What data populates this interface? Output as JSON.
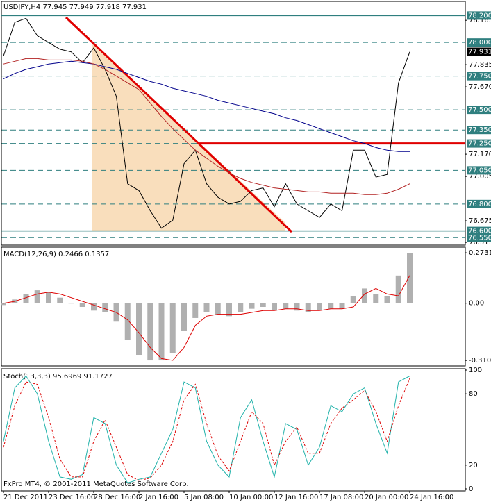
{
  "chart_data": [
    {
      "type": "line",
      "title": "USDJPY,H4  77.945 77.949 77.918 77.931",
      "ylim": [
        76.5,
        78.3
      ],
      "yticks": [
        {
          "value": 78.165,
          "label": "78.165"
        },
        {
          "value": 77.835,
          "label": "77.835"
        },
        {
          "value": 77.67,
          "label": "77.670"
        },
        {
          "value": 77.17,
          "label": "77.170"
        },
        {
          "value": 77.005,
          "label": "77.005"
        },
        {
          "value": 76.675,
          "label": "76.675"
        },
        {
          "value": 76.515,
          "label": "76.515"
        }
      ],
      "levels": [
        {
          "value": 78.2,
          "label": "78.200",
          "style": "solid"
        },
        {
          "value": 78.0,
          "label": "78.000",
          "style": "dashed"
        },
        {
          "value": 77.75,
          "label": "77.750",
          "style": "dashed"
        },
        {
          "value": 77.5,
          "label": "77.500",
          "style": "dashed"
        },
        {
          "value": 77.35,
          "label": "77.350",
          "style": "dashed"
        },
        {
          "value": 77.25,
          "label": "77.250",
          "style": "highlight"
        },
        {
          "value": 77.05,
          "label": "77.050",
          "style": "dashed"
        },
        {
          "value": 76.8,
          "label": "76.800",
          "style": "dashed"
        },
        {
          "value": 76.6,
          "label": "76.600",
          "style": "solid"
        },
        {
          "value": 76.55,
          "label": "76.550",
          "style": "dashed"
        }
      ],
      "last_price": {
        "value": 77.931,
        "label": "77.931"
      },
      "series": [
        {
          "color": "#000000",
          "values": [
            77.9,
            78.15,
            78.18,
            78.05,
            78.0,
            77.95,
            77.93,
            77.85,
            77.96,
            77.8,
            77.6,
            76.95,
            76.9,
            76.75,
            76.62,
            76.68,
            77.1,
            77.2,
            76.95,
            76.85,
            76.8,
            76.82,
            76.9,
            76.92,
            76.78,
            76.95,
            76.8,
            76.75,
            76.7,
            76.8,
            76.75,
            77.2,
            77.2,
            77.0,
            77.02,
            77.7,
            77.93,
            null,
            null,
            null
          ]
        },
        {
          "color": "#00008b",
          "values": [
            77.73,
            77.77,
            77.8,
            77.82,
            77.84,
            77.85,
            77.86,
            77.85,
            77.84,
            77.82,
            77.8,
            77.77,
            77.74,
            77.71,
            77.69,
            77.66,
            77.64,
            77.62,
            77.6,
            77.57,
            77.55,
            77.53,
            77.51,
            77.49,
            77.47,
            77.44,
            77.42,
            77.39,
            77.36,
            77.33,
            77.3,
            77.27,
            77.25,
            77.22,
            77.2,
            77.19,
            77.19,
            null,
            null,
            null
          ]
        },
        {
          "color": "#b22222",
          "values": [
            77.84,
            77.86,
            77.88,
            77.88,
            77.87,
            77.87,
            77.87,
            77.86,
            77.84,
            77.8,
            77.75,
            77.7,
            77.65,
            77.55,
            77.45,
            77.36,
            77.28,
            77.2,
            77.14,
            77.08,
            77.03,
            76.99,
            76.96,
            76.94,
            76.92,
            76.91,
            76.9,
            76.89,
            76.89,
            76.88,
            76.88,
            76.88,
            76.87,
            76.87,
            76.88,
            76.91,
            76.95,
            null,
            null,
            null
          ]
        }
      ]
    },
    {
      "type": "bar",
      "title": "MACD(12,26,9) 0.2466 0.1357",
      "ylim": [
        -0.34,
        0.3
      ],
      "yticks": [
        0.2731,
        {
          "value": 0,
          "label": "0.00"
        },
        -0.3104
      ],
      "series": [
        {
          "color": "#b0b0b0",
          "values": [
            -0.01,
            0.02,
            0.05,
            0.07,
            0.06,
            0.03,
            0.0,
            -0.02,
            -0.04,
            -0.05,
            -0.1,
            -0.2,
            -0.28,
            -0.31,
            -0.31,
            -0.27,
            -0.15,
            -0.08,
            -0.05,
            -0.06,
            -0.07,
            -0.05,
            -0.03,
            -0.02,
            -0.04,
            -0.03,
            -0.04,
            -0.05,
            -0.04,
            -0.03,
            -0.03,
            0.04,
            0.08,
            0.05,
            0.04,
            0.15,
            0.27,
            null,
            null,
            null
          ]
        },
        {
          "color": "#dd0000",
          "type": "line",
          "values": [
            0.0,
            0.01,
            0.03,
            0.05,
            0.06,
            0.05,
            0.03,
            0.01,
            -0.01,
            -0.03,
            -0.05,
            -0.09,
            -0.16,
            -0.24,
            -0.3,
            -0.31,
            -0.24,
            -0.12,
            -0.07,
            -0.06,
            -0.06,
            -0.06,
            -0.05,
            -0.04,
            -0.04,
            -0.03,
            -0.03,
            -0.04,
            -0.04,
            -0.03,
            -0.03,
            -0.02,
            0.05,
            0.08,
            0.05,
            0.04,
            0.15,
            null,
            null,
            null
          ]
        }
      ]
    },
    {
      "type": "line",
      "title": "Stoch(13,3,3) 95.6969 91.1727",
      "ylim": [
        0,
        100
      ],
      "yticks": [
        100,
        80,
        20,
        0
      ],
      "footer": "FxPro MT4, © 2001-2011 MetaQuotes Software Corp.",
      "categories": [
        "21 Dec 2011",
        null,
        null,
        null,
        "23 Dec 16:00",
        null,
        null,
        null,
        "28 Dec 16:00",
        null,
        null,
        null,
        "2 Jan 16:00",
        null,
        null,
        null,
        "5 Jan 08:00",
        null,
        null,
        null,
        "10 Jan 00:00",
        null,
        null,
        null,
        "12 Jan 16:00",
        null,
        null,
        null,
        "17 Jan 08:00",
        null,
        null,
        null,
        "20 Jan 00:00",
        null,
        null,
        null,
        "24 Jan 16:00",
        null,
        null,
        null
      ],
      "series": [
        {
          "color": "#20b2aa",
          "values": [
            40,
            85,
            95,
            80,
            40,
            10,
            8,
            12,
            60,
            55,
            20,
            5,
            8,
            10,
            30,
            50,
            90,
            85,
            40,
            20,
            10,
            60,
            75,
            40,
            10,
            55,
            50,
            20,
            35,
            70,
            65,
            80,
            85,
            55,
            30,
            90,
            95,
            null,
            null,
            null
          ]
        },
        {
          "color": "#dd0000",
          "dash": "3,2",
          "values": [
            35,
            70,
            90,
            88,
            60,
            25,
            10,
            10,
            40,
            58,
            35,
            12,
            7,
            9,
            20,
            40,
            75,
            88,
            55,
            28,
            15,
            40,
            65,
            55,
            20,
            40,
            52,
            30,
            30,
            55,
            68,
            75,
            83,
            65,
            40,
            70,
            93,
            null,
            null,
            null
          ]
        }
      ]
    }
  ]
}
